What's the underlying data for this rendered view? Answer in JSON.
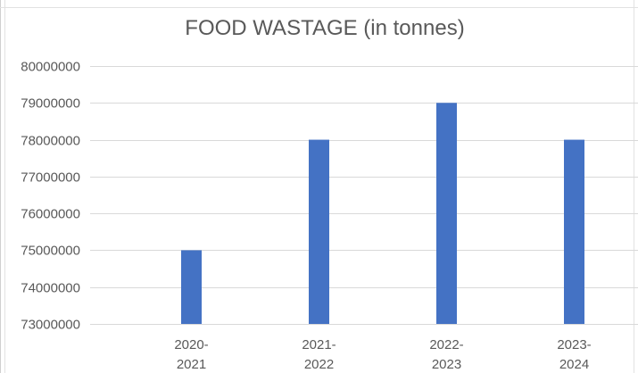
{
  "chart_data": {
    "type": "bar",
    "title": "FOOD WASTAGE (in tonnes)",
    "categories": [
      [
        "2020-",
        "2021"
      ],
      [
        "2021-",
        "2022"
      ],
      [
        "2022-",
        "2023"
      ],
      [
        "2023-",
        "2024"
      ]
    ],
    "values": [
      75000000,
      78000000,
      79000000,
      78000000
    ],
    "xlabel": "",
    "ylabel": "",
    "ylim": [
      73000000,
      80000000
    ],
    "yticks": [
      "73000000",
      "74000000",
      "75000000",
      "76000000",
      "77000000",
      "78000000",
      "79000000",
      "80000000"
    ],
    "grid": true,
    "legend": "none",
    "bar_color": "#4472C4",
    "grid_color": "#D9D9D9"
  }
}
